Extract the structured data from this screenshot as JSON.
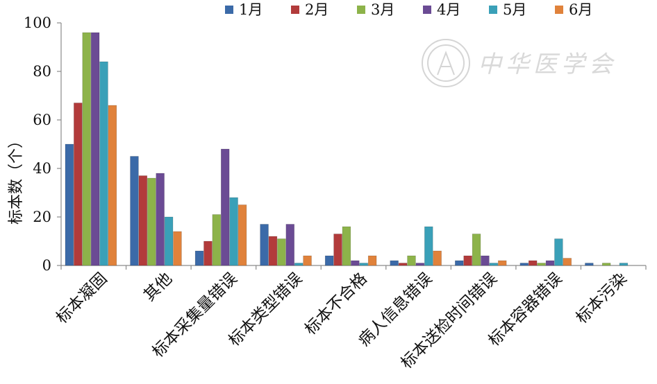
{
  "watermark": {
    "text": "中华医学会"
  },
  "chart_data": {
    "type": "bar",
    "title": "",
    "xlabel": "",
    "ylabel": "标本数（个）",
    "ylim": [
      0,
      100
    ],
    "yticks": [
      0,
      20,
      40,
      60,
      80,
      100
    ],
    "grid": false,
    "legend": "top",
    "categories": [
      "标本凝固",
      "其他",
      "标本采集量错误",
      "标本类型错误",
      "标本不合格",
      "病人信息错误",
      "标本送检时间错误",
      "标本容器错误",
      "标本污染"
    ],
    "series": [
      {
        "name": "1月",
        "color": "#3b6aa8",
        "values": [
          50,
          45,
          6,
          17,
          4,
          2,
          2,
          1,
          1
        ]
      },
      {
        "name": "2月",
        "color": "#b23b3b",
        "values": [
          67,
          37,
          10,
          12,
          13,
          1,
          4,
          2,
          0
        ]
      },
      {
        "name": "3月",
        "color": "#8db34a",
        "values": [
          96,
          36,
          21,
          11,
          16,
          4,
          13,
          1,
          1
        ]
      },
      {
        "name": "4月",
        "color": "#6b4b94",
        "values": [
          96,
          38,
          48,
          17,
          2,
          1,
          4,
          2,
          0
        ]
      },
      {
        "name": "5月",
        "color": "#3aa0b8",
        "values": [
          84,
          20,
          28,
          1,
          1,
          16,
          1,
          11,
          1
        ]
      },
      {
        "name": "6月",
        "color": "#e0823b",
        "values": [
          66,
          14,
          25,
          4,
          4,
          6,
          2,
          3,
          0
        ]
      }
    ]
  }
}
